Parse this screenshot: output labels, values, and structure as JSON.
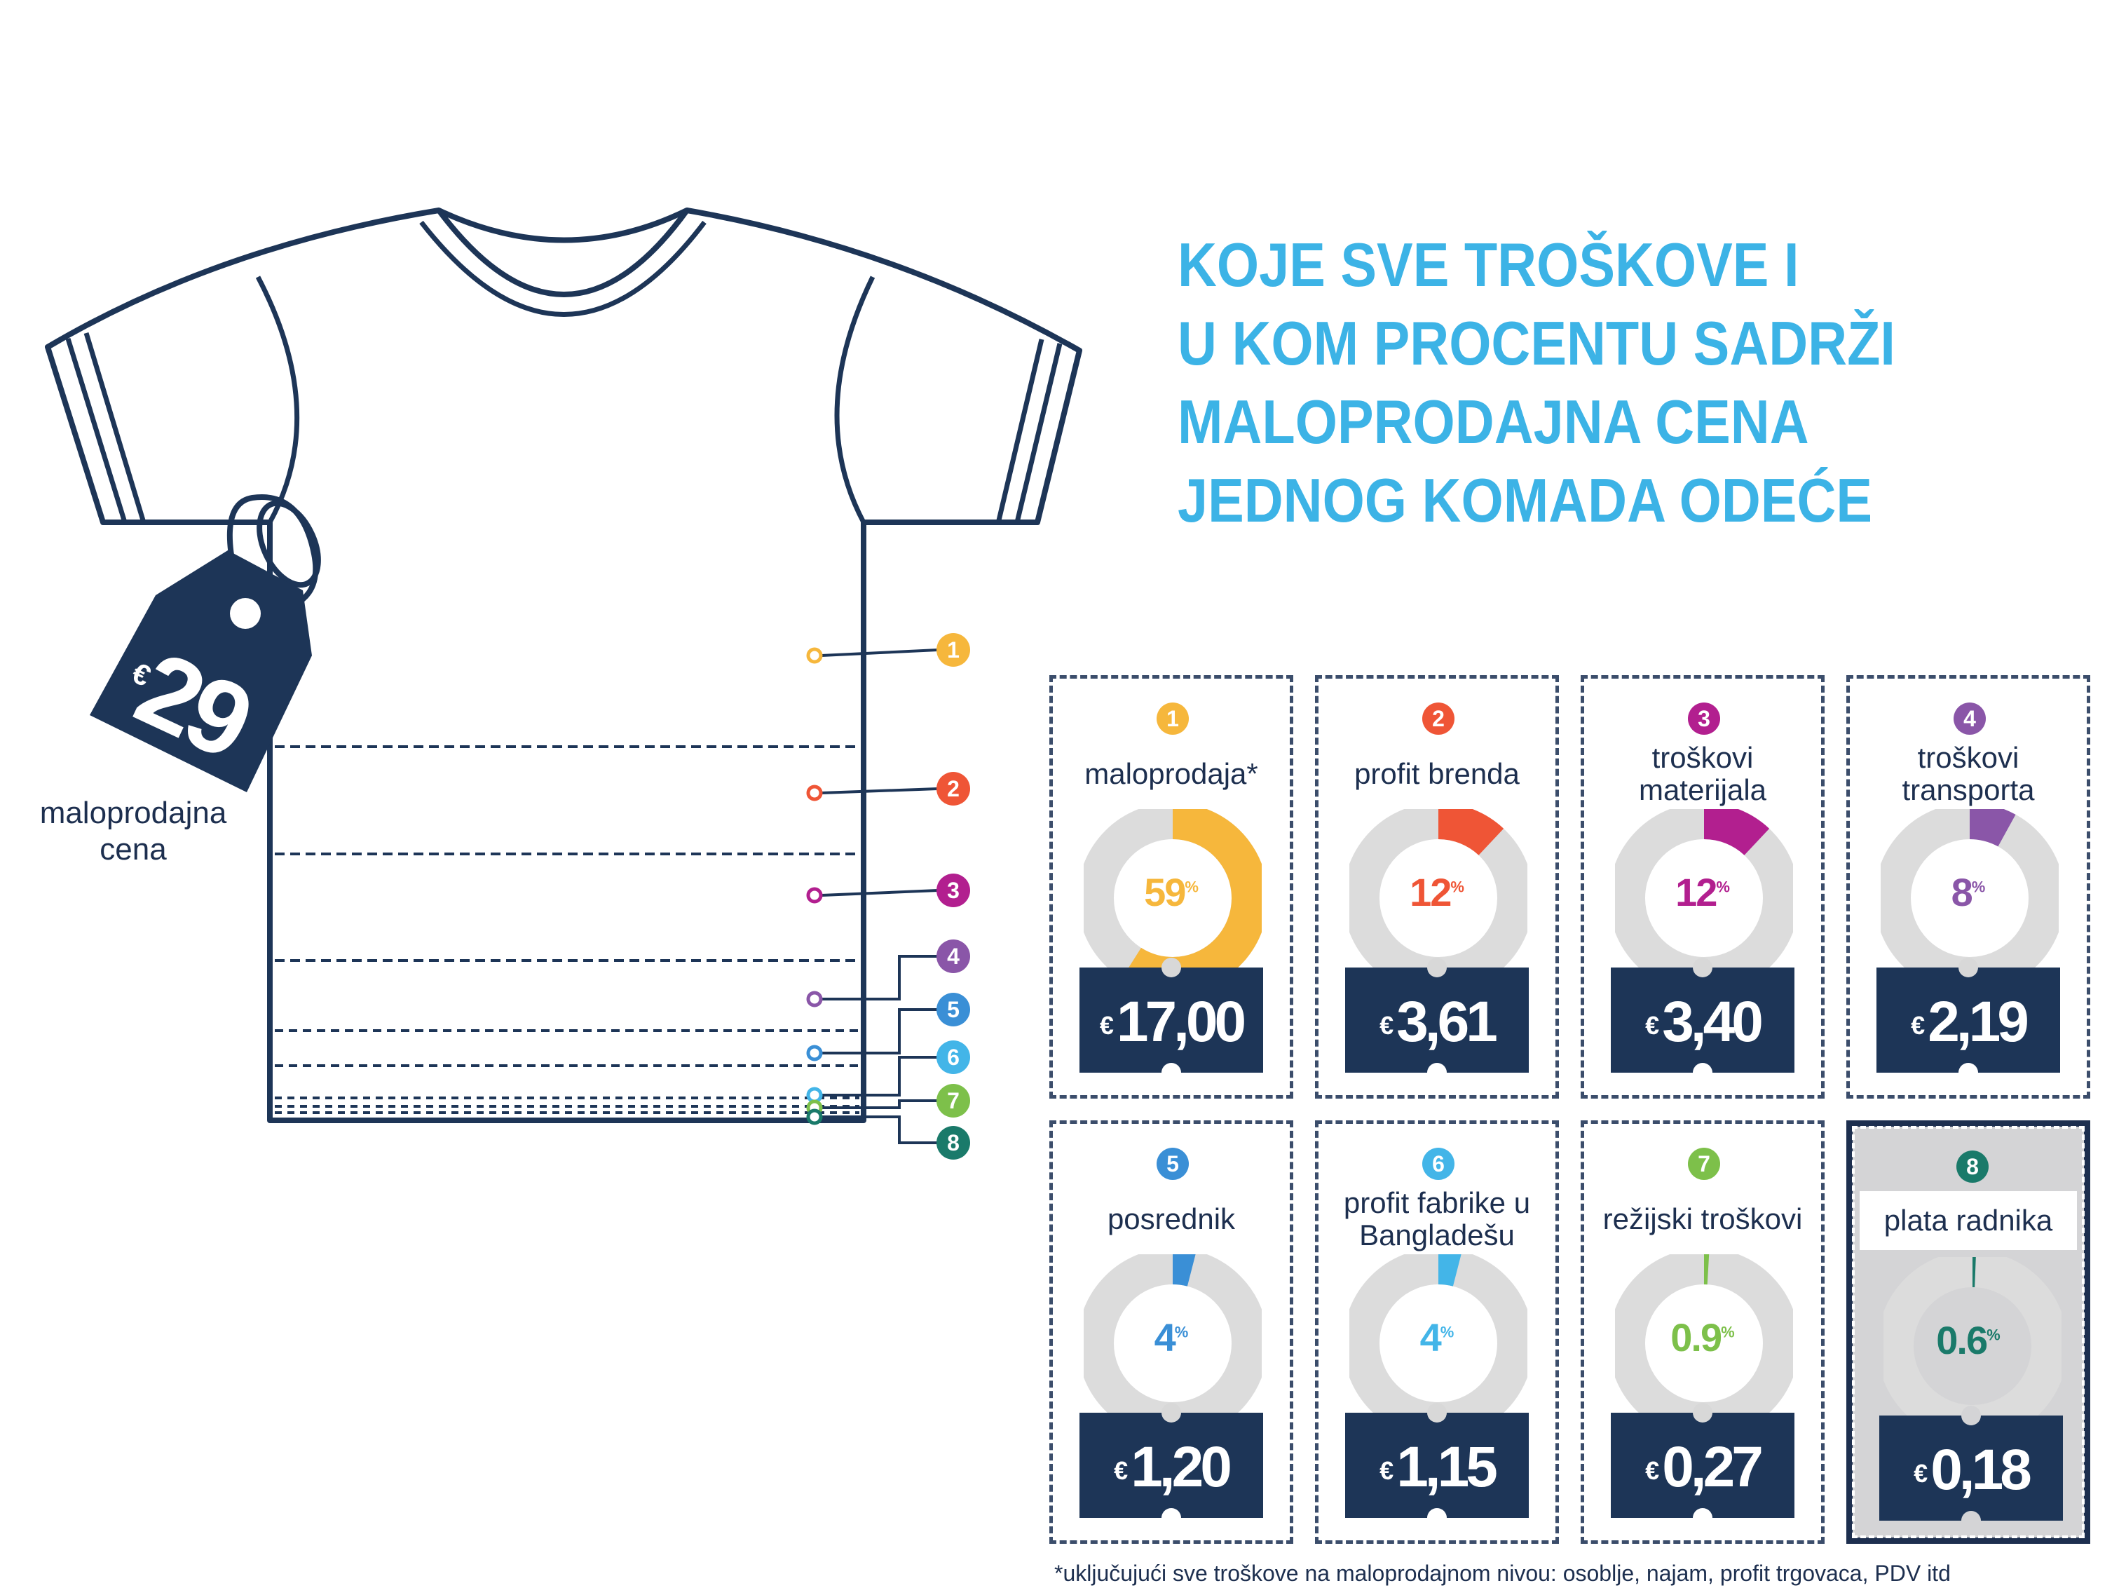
{
  "title": {
    "lines": [
      "KOJE SVE TROŠKOVE I",
      "U KOM PROCENTU SADRŽI",
      "MALOPRODAJNA CENA",
      "JEDNOG KOMADA ODEĆE"
    ]
  },
  "price_tag": {
    "currency": "€",
    "amount": "29"
  },
  "retail_price_label": {
    "line1": "maloprodajna",
    "line2": "cena"
  },
  "footnote": "*uključujući sve troškove na maloprodajnom nivou: osoblje, najam, profit trgovaca, PDV itd",
  "colors": {
    "title": "#3cb3e6",
    "navy": "#1d3557",
    "ring": "#dcdcdc"
  },
  "items": [
    {
      "num": "1",
      "label": "maloprodaja*",
      "percent": "59",
      "percent_value": 59,
      "price_currency": "€",
      "price": "17,00",
      "color": "#f6b73c"
    },
    {
      "num": "2",
      "label": "profit brenda",
      "percent": "12",
      "percent_value": 12,
      "price_currency": "€",
      "price": "3,61",
      "color": "#ef5536"
    },
    {
      "num": "3",
      "label": "troškovi materijala",
      "percent": "12",
      "percent_value": 12,
      "price_currency": "€",
      "price": "3,40",
      "color": "#b21f8f"
    },
    {
      "num": "4",
      "label": "troškovi transporta",
      "percent": "8",
      "percent_value": 8,
      "price_currency": "€",
      "price": "2,19",
      "color": "#8a56a8"
    },
    {
      "num": "5",
      "label": "posrednik",
      "percent": "4",
      "percent_value": 4,
      "price_currency": "€",
      "price": "1,20",
      "color": "#3a8fd6"
    },
    {
      "num": "6",
      "label": "profit fabrike u Bangladešu",
      "percent": "4",
      "percent_value": 4,
      "price_currency": "€",
      "price": "1,15",
      "color": "#43b5e8"
    },
    {
      "num": "7",
      "label": "režijski troškovi",
      "percent": "0.9",
      "percent_value": 0.9,
      "price_currency": "€",
      "price": "0,27",
      "color": "#7dc04a"
    },
    {
      "num": "8",
      "label": "plata radnika",
      "percent": "0.6",
      "percent_value": 0.6,
      "price_currency": "€",
      "price": "0,18",
      "color": "#1a7a6a",
      "highlighted": true
    }
  ]
}
